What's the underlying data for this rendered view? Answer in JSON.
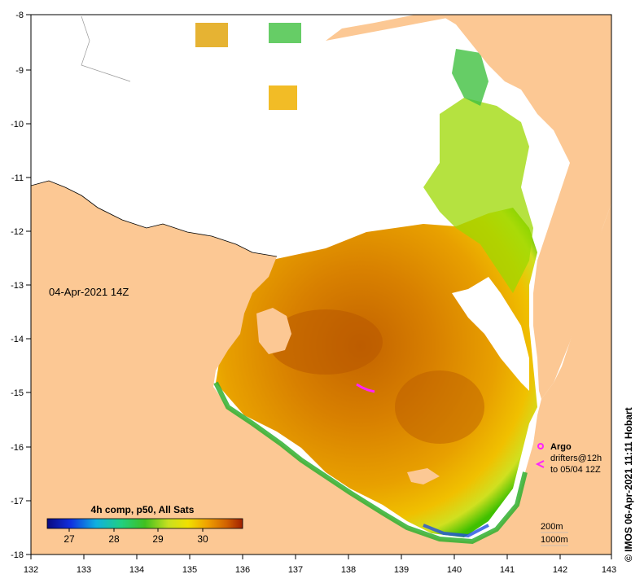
{
  "map": {
    "timestamp_label": "04-Apr-2021 14Z",
    "credit_label": "© IMOS 06-Apr-2021 11:11 Hobart",
    "lon_ticks": [
      "132",
      "133",
      "134",
      "135",
      "136",
      "137",
      "138",
      "139",
      "140",
      "141",
      "142",
      "143"
    ],
    "lat_ticks": [
      "-8",
      "-9",
      "-10",
      "-11",
      "-12",
      "-13",
      "-14",
      "-15",
      "-16",
      "-17",
      "-18"
    ],
    "colorbar": {
      "title": "4h comp, p50, All Sats",
      "ticks": [
        "27",
        "28",
        "29",
        "30"
      ]
    },
    "legend": {
      "argo_label": "Argo",
      "drifters_label": "drifters@12h",
      "drifters_sub": "to 05/04 12Z"
    },
    "contours": {
      "line1": "200m",
      "line2": "1000m"
    },
    "colors": {
      "land": "#fcc894",
      "cloud": "#ffffff",
      "sst_warm": "#c86a00",
      "sst_mid": "#e8a000",
      "sst_cool": "#44c000",
      "drifter": "#ff22ff"
    }
  }
}
